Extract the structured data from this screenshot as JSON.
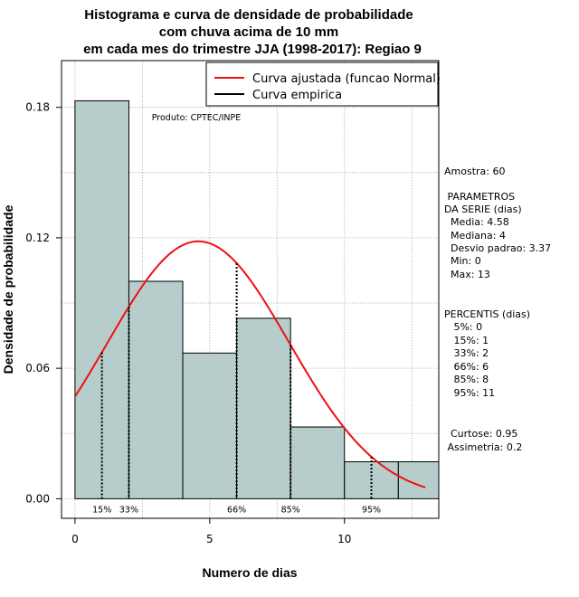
{
  "chart_data": {
    "type": "bar",
    "title": [
      "Histograma e curva de densidade de probabilidade",
      "com chuva acima de 10 mm",
      "em cada mes do trimestre JJA (1998-2017): Regiao 9"
    ],
    "xlabel": "Numero de dias",
    "ylabel": "Densidade de probabilidade",
    "xlim": [
      -0.5,
      13.5
    ],
    "ylim": [
      -0.009,
      0.2015
    ],
    "x_ticks": [
      0,
      5,
      10
    ],
    "y_ticks": [
      0.0,
      0.06,
      0.12,
      0.18
    ],
    "y_tick_labels": [
      "0.00",
      "0.06",
      "0.12",
      "0.18"
    ],
    "grid": true,
    "histogram": {
      "breaks": [
        0,
        2,
        4,
        6,
        8,
        10,
        12,
        13.5
      ],
      "density": [
        0.183,
        0.1,
        0.067,
        0.083,
        0.033,
        0.017,
        0.017
      ],
      "fill": "#b6cdcb"
    },
    "normal_curve": {
      "name": "Curva ajustada (funcao Normal)",
      "mean": 4.58,
      "sd": 3.37,
      "x_range": [
        0,
        13
      ],
      "color": "#ee1111"
    },
    "empirical_curve": {
      "name": "Curva empirica",
      "color": "#000000"
    },
    "legend": {
      "position": "top-right",
      "entries": [
        {
          "label": "Curva ajustada (funcao Normal)",
          "color": "#ee1111"
        },
        {
          "label": "Curva empirica",
          "color": "#000000"
        }
      ]
    },
    "percentiles": [
      {
        "label": "15%",
        "x": 1
      },
      {
        "label": "33%",
        "x": 2
      },
      {
        "label": "66%",
        "x": 6
      },
      {
        "label": "85%",
        "x": 8
      },
      {
        "label": "95%",
        "x": 11
      }
    ],
    "annotation": "Produto: CPTEC/INPE",
    "side_panel": [
      "Amostra: 60",
      " PARAMETROS",
      "DA SERIE (dias)",
      "  Media: 4.58",
      "  Mediana: 4",
      "  Desvio padrao: 3.37",
      "  Min: 0",
      "  Max: 13",
      "PERCENTIS (dias)",
      "   5%: 0",
      "   15%: 1",
      "   33%: 2",
      "   66%: 6",
      "   85%: 8",
      "   95%: 11",
      "  Curtose: 0.95",
      " Assimetria: 0.2"
    ]
  }
}
